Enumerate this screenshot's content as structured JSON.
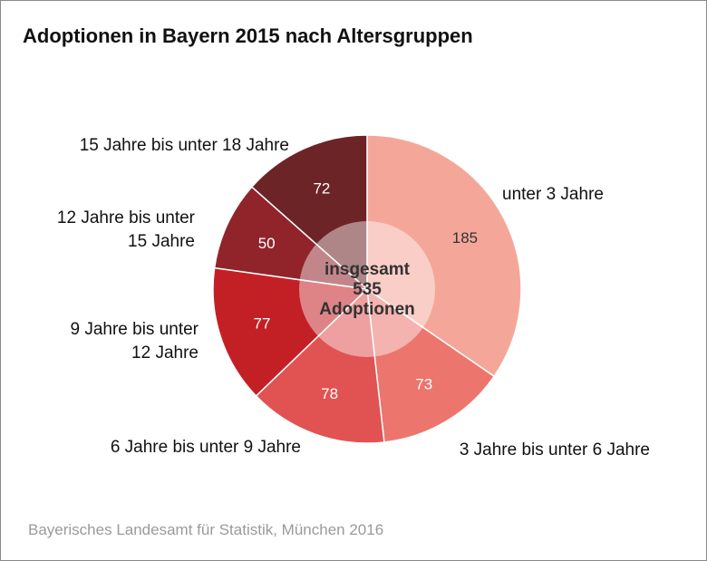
{
  "chart_data": {
    "type": "pie",
    "title": "Adoptionen in Bayern 2015 nach Altersgruppen",
    "total_label": [
      "insgesamt",
      "535",
      "Adoptionen"
    ],
    "slices": [
      {
        "label": [
          "unter 3 Jahre"
        ],
        "value": 185,
        "color": "#f4a799",
        "value_color": "#333333"
      },
      {
        "label": [
          "3 Jahre bis unter 6 Jahre"
        ],
        "value": 73,
        "color": "#ec766d",
        "value_color": "#ffffff"
      },
      {
        "label": [
          "6 Jahre bis unter 9 Jahre"
        ],
        "value": 78,
        "color": "#e05352",
        "value_color": "#ffffff"
      },
      {
        "label": [
          "9 Jahre bis unter",
          "12 Jahre"
        ],
        "value": 77,
        "color": "#c32026",
        "value_color": "#ffffff"
      },
      {
        "label": [
          "12 Jahre bis unter",
          "15 Jahre"
        ],
        "value": 50,
        "color": "#91232b",
        "value_color": "#ffffff"
      },
      {
        "label": [
          "15 Jahre bis unter 18 Jahre"
        ],
        "value": 72,
        "color": "#6c2426",
        "value_color": "#ffffff"
      }
    ]
  },
  "source": "Bayerisches Landesamt für Statistik, München 2016"
}
